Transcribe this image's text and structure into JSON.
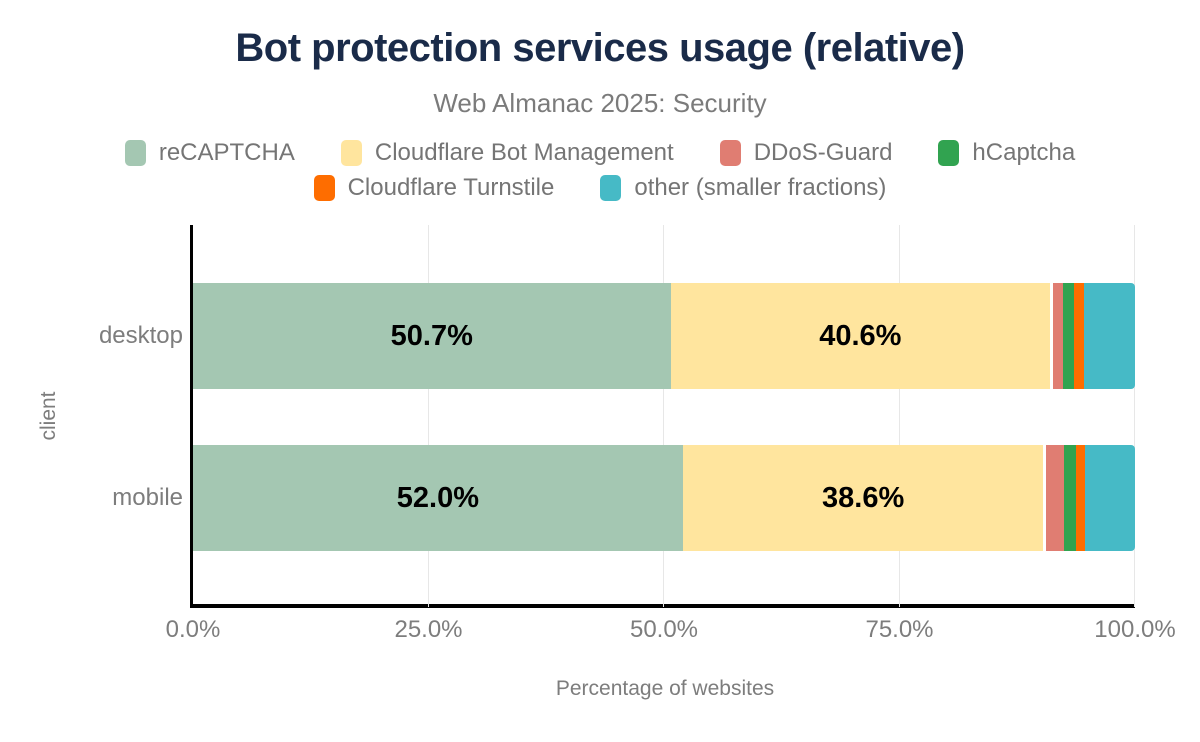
{
  "page": {
    "title": "Bot protection services usage (relative)",
    "subtitle": "Web Almanac 2025: Security"
  },
  "chart_data": {
    "type": "bar",
    "subtype": "horizontal-stacked-100-percent",
    "title": "Bot protection services usage (relative)",
    "subtitle": "Web Almanac 2025: Security",
    "categories": [
      "desktop",
      "mobile"
    ],
    "series": [
      {
        "name": "reCAPTCHA",
        "color": "#a4c7b2",
        "values": [
          50.7,
          52.0
        ]
      },
      {
        "name": "Cloudflare Bot Management",
        "color": "#ffe59e",
        "values": [
          40.6,
          38.6
        ]
      },
      {
        "name": "DDoS-Guard",
        "color": "#e07d72",
        "values": [
          1.1,
          1.9
        ]
      },
      {
        "name": "hCaptcha",
        "color": "#31a350",
        "values": [
          1.1,
          1.2
        ]
      },
      {
        "name": "Cloudflare Turnstile",
        "color": "#fe6d00",
        "values": [
          1.1,
          1.0
        ]
      },
      {
        "name": "other (smaller fractions)",
        "color": "#46bac6",
        "values": [
          5.4,
          5.3
        ]
      }
    ],
    "data_labels": [
      "50.7%",
      "40.6%",
      "52.0%",
      "38.6%"
    ],
    "data_label_min_percent": 10,
    "x_ticks": [
      {
        "value": 0,
        "label": "0.0%"
      },
      {
        "value": 25,
        "label": "25.0%"
      },
      {
        "value": 50,
        "label": "50.0%"
      },
      {
        "value": 75,
        "label": "75.0%"
      },
      {
        "value": 100,
        "label": "100.0%"
      }
    ],
    "xlabel": "Percentage of websites",
    "ylabel": "client",
    "xlim": [
      0,
      100
    ],
    "grid": true,
    "legend_position": "top"
  },
  "colors": {
    "background": "#ffffff",
    "title": "#1a2b49",
    "subtitle": "#7b7b7b",
    "legend_text": "#757575",
    "axis_text": "#7d7d7d",
    "bar_label": "#000000",
    "axis_line": "#000000",
    "gridline": "#e7e7e7"
  }
}
